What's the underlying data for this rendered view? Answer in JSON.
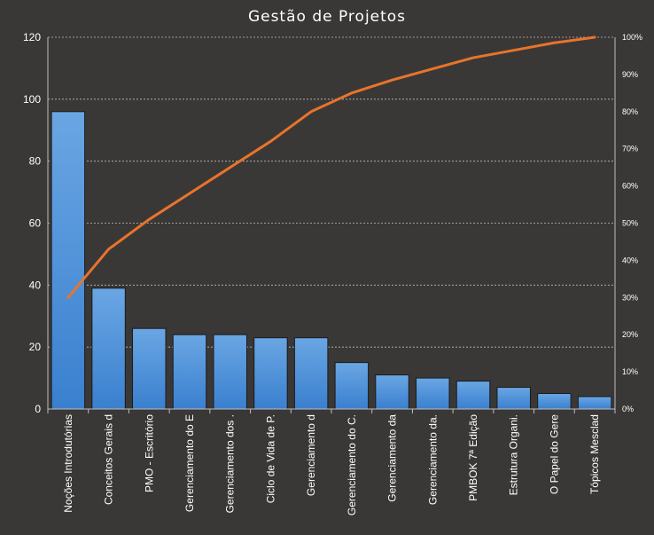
{
  "chart_data": {
    "type": "bar",
    "title": "Gestão de Projetos",
    "categories": [
      "Noções Introdutórias",
      "Conceitos Gerais d",
      "PMO - Escritório",
      "Gerenciamento do E",
      "Gerenciamento dos .",
      "Ciclo de Vida de P.",
      "Gerenciamento d",
      "Gerenciamento do C.",
      "Gerenciamento da",
      "Gerenciamento da.",
      "PMBOK 7ª Edição",
      "Estrutura Organi.",
      "O Papel do Gere",
      "Tópicos Mesclad"
    ],
    "series": [
      {
        "type": "bar",
        "axis": "left",
        "color": "#4a90d9",
        "values": [
          96,
          39,
          26,
          24,
          24,
          23,
          23,
          15,
          11,
          10,
          9,
          7,
          5,
          4
        ]
      },
      {
        "type": "line",
        "axis": "right",
        "color": "#e8742a",
        "values": [
          30,
          43,
          51,
          58,
          65,
          72,
          80,
          85,
          88.5,
          91.5,
          94.5,
          96.5,
          98.5,
          100
        ]
      }
    ],
    "ylim": [
      0,
      120
    ],
    "yticks": [
      "0",
      "20",
      "40",
      "60",
      "80",
      "100",
      "120"
    ],
    "y2lim": [
      0,
      100
    ],
    "y2ticks": [
      "0%",
      "10%",
      "20%",
      "30%",
      "40%",
      "50%",
      "60%",
      "70%",
      "80%",
      "90%",
      "100%"
    ],
    "grid": true,
    "legend": "none"
  }
}
